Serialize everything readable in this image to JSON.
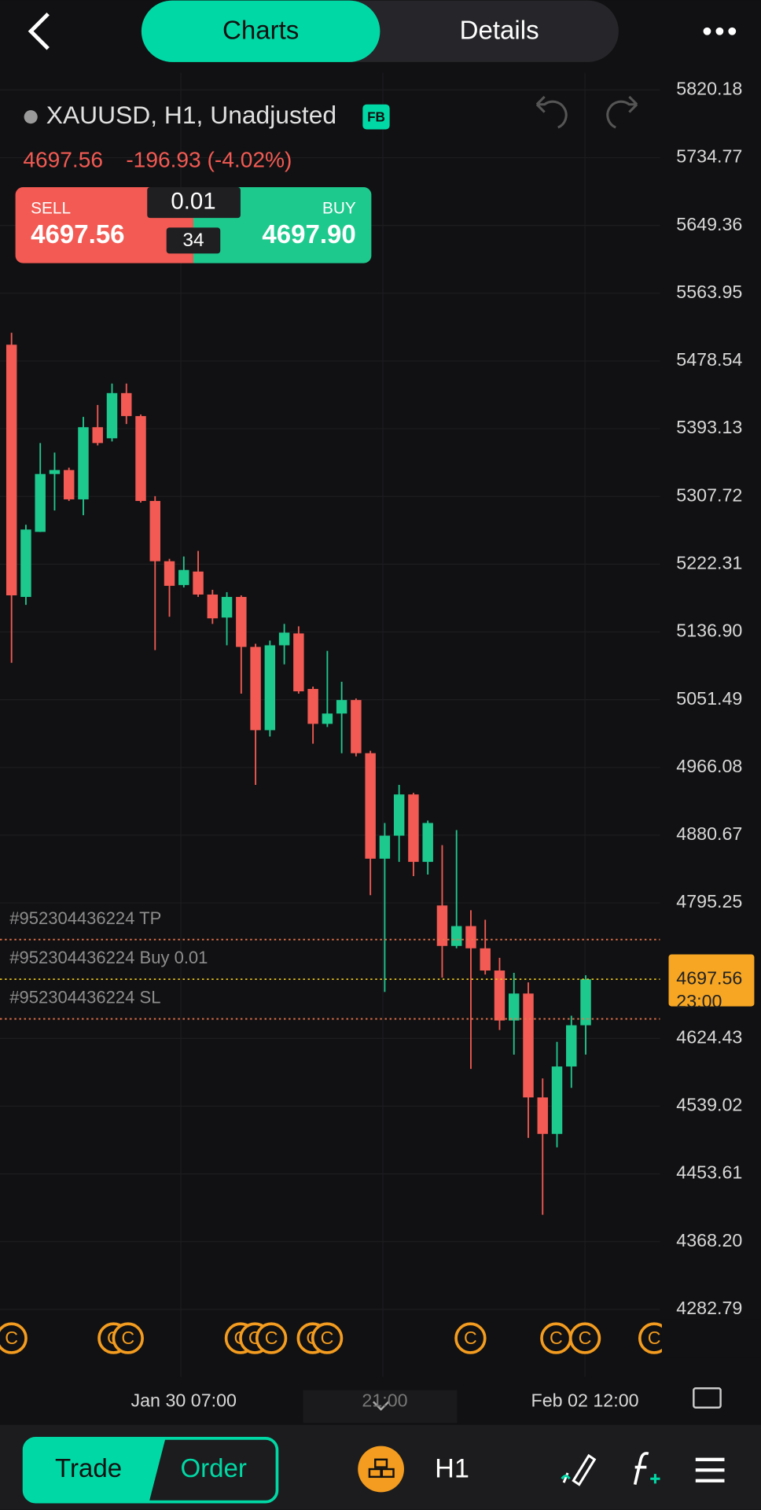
{
  "header": {
    "tabs": [
      "Charts",
      "Details"
    ]
  },
  "symbol": {
    "title": "XAUUSD, H1, Unadjusted",
    "badge": "FB",
    "price": "4697.56",
    "change": "-196.93 (-4.02%)"
  },
  "trade_panel": {
    "sell_label": "SELL",
    "sell_price": "4697.56",
    "lot": "0.01",
    "spread": "34",
    "buy_label": "BUY",
    "buy_price": "4697.90"
  },
  "chart_data": {
    "type": "candlestick",
    "open": [
      5499,
      5181,
      5263,
      5336,
      5341,
      5304,
      5395,
      5381,
      5438,
      5409,
      5302,
      5226,
      5196,
      5213,
      5184,
      5155,
      5181,
      5118,
      5013,
      5120,
      5135,
      5065,
      5021,
      5034,
      5051,
      4984,
      4851,
      4880,
      4932,
      4847,
      4792,
      4741,
      4766,
      4738,
      4710,
      4647,
      4681,
      4550,
      4504,
      4589,
      4641
    ],
    "high": [
      5514,
      5272,
      5375,
      5363,
      5344,
      5408,
      5423,
      5450,
      5450,
      5411,
      5308,
      5229,
      5232,
      5239,
      5190,
      5187,
      5183,
      5122,
      5126,
      5147,
      5144,
      5068,
      5113,
      5074,
      5053,
      4987,
      4896,
      4944,
      4934,
      4899,
      4868,
      4887,
      4786,
      4774,
      4726,
      4707,
      4695,
      4574,
      4620,
      4653,
      4704
    ],
    "low": [
      5098,
      5171,
      5263,
      5290,
      5302,
      5284,
      5372,
      5377,
      5399,
      5300,
      5114,
      5156,
      5193,
      5181,
      5147,
      5120,
      5059,
      4944,
      5005,
      5096,
      5059,
      4996,
      5017,
      4984,
      4980,
      4805,
      4683,
      4847,
      4829,
      4831,
      4701,
      4738,
      4586,
      4705,
      4635,
      4604,
      4499,
      4402,
      4487,
      4562,
      4604
    ],
    "close": [
      5183,
      5266,
      5336,
      5341,
      5304,
      5395,
      5375,
      5438,
      5409,
      5302,
      5226,
      5195,
      5215,
      5184,
      5154,
      5181,
      5118,
      5013,
      5120,
      5136,
      5062,
      5021,
      5034,
      5051,
      4984,
      4851,
      4880,
      4932,
      4847,
      4896,
      4741,
      4766,
      4738,
      4710,
      4647,
      4681,
      4550,
      4504,
      4589,
      4641,
      4699
    ],
    "up_color": "#1ec98e",
    "down_color": "#f25a53",
    "ylim": [
      4282.79,
      5820.18
    ],
    "yticks": [
      5820.18,
      5734.77,
      5649.36,
      5563.95,
      5478.54,
      5393.13,
      5307.72,
      5222.31,
      {
        "value": 5136.9,
        "label": "5136.90"
      },
      5051.49,
      4966.08,
      4880.67,
      4795.25,
      4624.43,
      4539.02,
      4453.61,
      {
        "value": 4368.2,
        "label": "4368.20"
      },
      4282.79
    ],
    "grid": true,
    "x_labels": [
      "Jan 30 07:00",
      "21:00",
      "Feb 02 12:00"
    ],
    "orders": [
      {
        "name": "#952304436224 TP",
        "price": 4749,
        "color": "#e8744a"
      },
      {
        "name": "#952304436224 Buy 0.01",
        "price": 4699,
        "color": "#e6c21a"
      },
      {
        "name": "#952304436224 SL",
        "price": 4649,
        "color": "#e8744a"
      }
    ],
    "last_price": {
      "value": 4697.56,
      "time": "23:00"
    },
    "event_marker": "C"
  },
  "bottom_bar": {
    "trade": "Trade",
    "order": "Order",
    "interval": "H1"
  }
}
